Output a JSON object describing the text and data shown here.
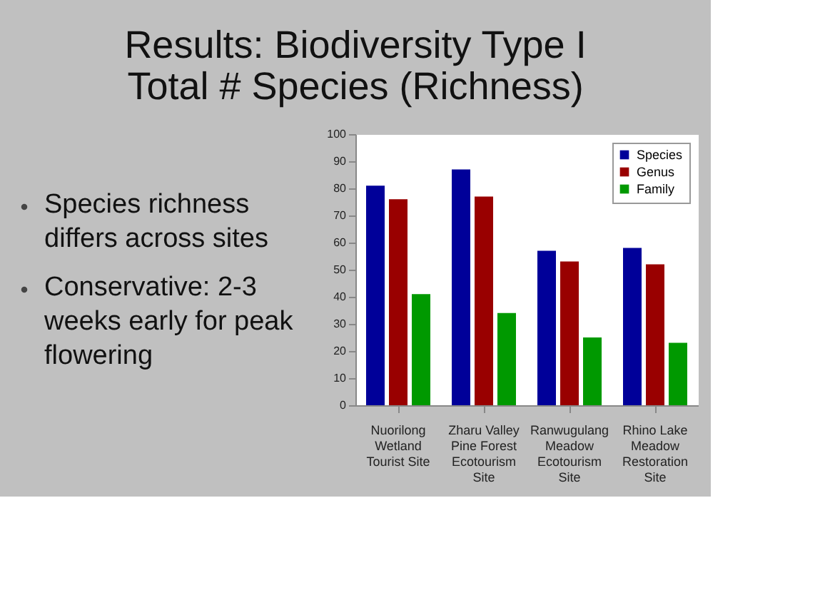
{
  "chart_data": {
    "type": "bar",
    "title": [
      "Results: Biodiversity Type I",
      "Total # Species (Richness)"
    ],
    "annotations": [
      "Species richness differs across sites",
      "Conservative: 2-3 weeks early for peak flowering"
    ],
    "categories": [
      "Nuorilong Wetland Tourist Site",
      "Zharu Valley Pine Forest Ecotourism Site",
      "Ranwugulang Meadow Ecotourism Site",
      "Rhino Lake Meadow Restoration Site"
    ],
    "series": [
      {
        "name": "Species",
        "color": "#000099",
        "values": [
          81,
          87,
          57,
          58
        ]
      },
      {
        "name": "Genus",
        "color": "#990000",
        "values": [
          76,
          77,
          53,
          52
        ]
      },
      {
        "name": "Family",
        "color": "#009900",
        "values": [
          41,
          34,
          25,
          23
        ]
      }
    ],
    "ylim": [
      0,
      100
    ],
    "yticks": [
      0,
      10,
      20,
      30,
      40,
      50,
      60,
      70,
      80,
      90,
      100
    ],
    "grid": false,
    "legend": "top right"
  }
}
